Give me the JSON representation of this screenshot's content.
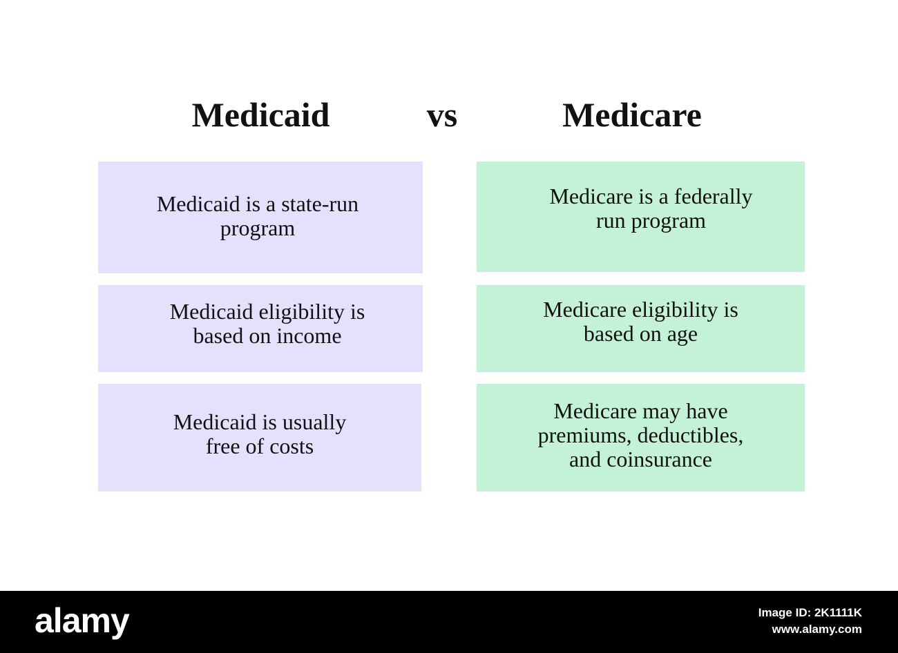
{
  "heading": {
    "left": "Medicaid",
    "vs": "vs",
    "right": "Medicare"
  },
  "rows": [
    {
      "left": "Medicaid is a state-run\nprogram",
      "right": "Medicare  is a federally\nrun program"
    },
    {
      "left": "Medicaid eligibility is\nbased on income",
      "right": "Medicare eligibility is\nbased on age"
    },
    {
      "left": "Medicaid is usually\nfree of costs",
      "right": "Medicare may have\npremiums, deductibles,\nand coinsurance"
    }
  ],
  "colors": {
    "left_box": "#e3e1fb",
    "right_box": "#c3f2d6"
  },
  "footer": {
    "brand": "alamy",
    "image_id": "Image ID: 2K1111K",
    "site": "www.alamy.com"
  }
}
